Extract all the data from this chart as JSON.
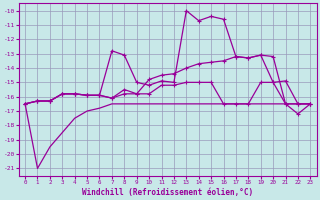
{
  "xlabel": "Windchill (Refroidissement éolien,°C)",
  "x": [
    0,
    1,
    2,
    3,
    4,
    5,
    6,
    7,
    8,
    9,
    10,
    11,
    12,
    13,
    14,
    15,
    16,
    17,
    18,
    19,
    20,
    21,
    22,
    23
  ],
  "line1": [
    -16.5,
    -21.0,
    -19.5,
    -18.5,
    -17.5,
    -17.0,
    -16.8,
    -16.5,
    -16.5,
    -16.5,
    -16.5,
    -16.5,
    -16.5,
    -16.5,
    -16.5,
    -16.5,
    -16.5,
    -16.5,
    -16.5,
    -16.5,
    -16.5,
    -16.5,
    -16.5,
    -16.5
  ],
  "line2": [
    -16.5,
    -16.3,
    -16.3,
    -15.8,
    -15.8,
    -15.9,
    -15.9,
    -12.8,
    -13.1,
    -15.0,
    -15.2,
    -14.9,
    -15.0,
    -10.0,
    -10.7,
    -10.4,
    -10.6,
    -13.2,
    -13.3,
    -13.1,
    -15.0,
    -14.9,
    -16.5,
    -16.5
  ],
  "line3": [
    -16.5,
    -16.3,
    -16.3,
    -15.8,
    -15.8,
    -15.9,
    -15.9,
    -16.1,
    -15.5,
    -15.8,
    -14.8,
    -14.5,
    -14.4,
    -14.0,
    -13.7,
    -13.6,
    -13.5,
    -13.2,
    -13.3,
    -13.1,
    -13.2,
    -16.5,
    -16.5,
    -16.5
  ],
  "line4": [
    -16.5,
    -16.3,
    -16.3,
    -15.8,
    -15.8,
    -15.9,
    -15.9,
    -16.1,
    -15.8,
    -15.8,
    -15.8,
    -15.2,
    -15.2,
    -15.0,
    -15.0,
    -15.0,
    -16.5,
    -16.5,
    -16.5,
    -15.0,
    -15.0,
    -16.5,
    -17.2,
    -16.5
  ],
  "ylim": [
    -21.5,
    -9.5
  ],
  "xlim": [
    -0.5,
    23.5
  ],
  "bg_color": "#c8e8e8",
  "line_color": "#990099",
  "grid_color": "#9999bb"
}
